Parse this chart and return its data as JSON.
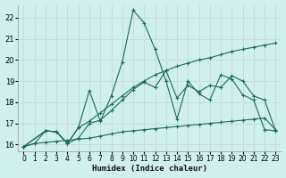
{
  "xlabel": "Humidex (Indice chaleur)",
  "background_color": "#cff0ec",
  "grid_color": "#c8dbd8",
  "line_color": "#1a6b5a",
  "xlim": [
    -0.5,
    23.5
  ],
  "ylim": [
    15.7,
    22.6
  ],
  "xticks": [
    0,
    1,
    2,
    3,
    4,
    5,
    6,
    7,
    8,
    9,
    10,
    11,
    12,
    13,
    14,
    15,
    16,
    17,
    18,
    19,
    20,
    21,
    22,
    23
  ],
  "yticks": [
    16,
    17,
    18,
    19,
    20,
    21,
    22
  ],
  "line1_x": [
    0,
    1,
    2,
    3,
    4,
    5,
    6,
    7,
    8,
    9,
    10,
    11,
    12,
    13,
    14,
    15,
    16,
    17,
    18,
    19,
    20,
    21,
    22,
    23
  ],
  "line1_y": [
    15.9,
    16.05,
    16.1,
    16.15,
    16.2,
    16.25,
    16.3,
    16.4,
    16.5,
    16.6,
    16.65,
    16.7,
    16.75,
    16.8,
    16.85,
    16.9,
    16.95,
    17.0,
    17.05,
    17.1,
    17.15,
    17.2,
    17.25,
    16.7
  ],
  "line2_x": [
    0,
    1,
    2,
    3,
    4,
    5,
    6,
    7,
    8,
    9,
    10,
    11,
    12,
    13,
    14,
    15,
    16,
    17,
    18,
    19,
    20,
    21,
    22,
    23
  ],
  "line2_y": [
    15.9,
    16.05,
    16.65,
    16.6,
    16.05,
    16.8,
    17.1,
    17.5,
    17.9,
    18.3,
    18.7,
    19.0,
    19.3,
    19.5,
    19.7,
    19.85,
    20.0,
    20.1,
    20.25,
    20.4,
    20.5,
    20.6,
    20.7,
    20.8
  ],
  "line3_x": [
    0,
    2,
    3,
    4,
    5,
    6,
    7,
    8,
    9,
    10,
    11,
    12,
    13,
    14,
    15,
    16,
    17,
    18,
    19,
    20,
    21,
    22,
    23
  ],
  "line3_y": [
    15.9,
    16.65,
    16.6,
    16.05,
    16.3,
    17.0,
    17.15,
    17.6,
    18.1,
    18.6,
    18.95,
    18.7,
    19.5,
    18.2,
    18.8,
    18.5,
    18.8,
    18.7,
    19.25,
    19.0,
    18.3,
    18.1,
    16.65
  ],
  "line4_x": [
    0,
    2,
    3,
    4,
    5,
    6,
    7,
    8,
    9,
    10,
    11,
    12,
    13,
    14,
    15,
    16,
    17,
    18,
    19,
    20,
    21,
    22,
    23
  ],
  "line4_y": [
    15.9,
    16.65,
    16.6,
    16.05,
    16.8,
    18.55,
    17.1,
    18.3,
    19.9,
    22.35,
    21.75,
    20.5,
    19.0,
    17.2,
    19.0,
    18.4,
    18.1,
    19.3,
    19.1,
    18.35,
    18.1,
    16.7,
    16.65
  ]
}
